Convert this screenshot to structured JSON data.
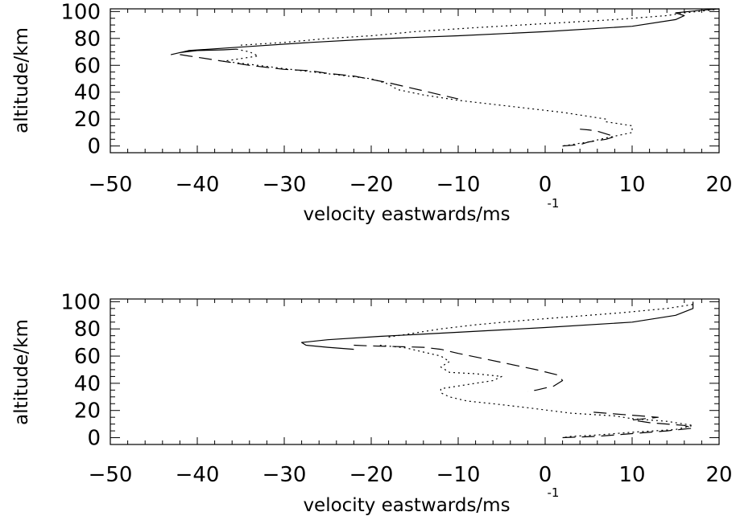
{
  "chart_data": [
    {
      "type": "line",
      "xlabel": "velocity eastwards/ms",
      "xlabel_sup": "-1",
      "ylabel": "altitude/km",
      "xlim": [
        -50,
        20
      ],
      "ylim": [
        -5,
        102
      ],
      "xticks": [
        -50,
        -40,
        -30,
        -20,
        -10,
        0,
        10,
        20
      ],
      "xtick_labels": [
        "−50",
        "−40",
        "−30",
        "−20",
        "−10",
        "0",
        "10",
        "20"
      ],
      "yticks": [
        0,
        20,
        40,
        60,
        80,
        100
      ],
      "ytick_labels": [
        "0",
        "20",
        "40",
        "60",
        "80",
        "100"
      ],
      "grid": false,
      "series": [
        {
          "style": "solid",
          "x": [
            -35.5,
            -37,
            -40,
            -42,
            -43,
            -41,
            -34,
            -27,
            -20,
            -10,
            0,
            10,
            15,
            16,
            15,
            18,
            20
          ],
          "y": [
            72,
            71.5,
            71,
            69.5,
            68,
            71,
            74,
            77,
            79.5,
            82,
            85,
            89,
            94,
            97,
            99,
            101,
            102
          ]
        },
        {
          "style": "dashed",
          "x": [
            -42,
            -41,
            -40,
            -38,
            -36,
            -34,
            -30,
            -27,
            -25,
            -22,
            -18,
            -16,
            -14,
            -12,
            -10
          ],
          "y": [
            68,
            67,
            66,
            64,
            62,
            60,
            57,
            56,
            54,
            52,
            47,
            44,
            41,
            38,
            35
          ]
        },
        {
          "style": "dashed",
          "x": [
            2,
            4,
            5,
            7,
            8,
            7,
            6,
            5,
            4
          ],
          "y": [
            0,
            1,
            3,
            5,
            7,
            9,
            11,
            12,
            12.5
          ]
        },
        {
          "style": "dotted",
          "x": [
            -35,
            -30,
            -25,
            -20,
            -15,
            -8,
            0,
            8,
            14,
            16,
            19,
            20
          ],
          "y": [
            75,
            77,
            80,
            82,
            85,
            88,
            91,
            94,
            97,
            99,
            101,
            102
          ]
        },
        {
          "style": "dotted",
          "x": [
            -35.5,
            -34,
            -33,
            -35,
            -37,
            -33,
            -28,
            -24,
            -20,
            -18,
            -17,
            -14,
            -10,
            -6,
            -2,
            2,
            5,
            7
          ],
          "y": [
            72,
            70,
            67,
            65,
            63,
            60,
            56,
            53,
            50,
            46,
            42,
            38,
            34,
            31,
            28,
            25,
            22,
            20
          ]
        },
        {
          "style": "dotted",
          "x": [
            7,
            10,
            10,
            7,
            5,
            3,
            2
          ],
          "y": [
            18,
            15,
            10,
            6,
            3,
            1,
            0
          ]
        }
      ]
    },
    {
      "type": "line",
      "xlabel": "velocity eastwards/ms",
      "xlabel_sup": "-1",
      "ylabel": "altitude/km",
      "xlim": [
        -50,
        20
      ],
      "ylim": [
        -5,
        102
      ],
      "xticks": [
        -50,
        -40,
        -30,
        -20,
        -10,
        0,
        10,
        20
      ],
      "xtick_labels": [
        "−50",
        "−40",
        "−30",
        "−20",
        "−10",
        "0",
        "10",
        "20"
      ],
      "yticks": [
        0,
        20,
        40,
        60,
        80,
        100
      ],
      "ytick_labels": [
        "0",
        "20",
        "40",
        "60",
        "80",
        "100"
      ],
      "grid": false,
      "series": [
        {
          "style": "solid",
          "x": [
            -22,
            -25,
            -27.5,
            -28,
            -25,
            -19,
            -10,
            0,
            10,
            15,
            17,
            17
          ],
          "y": [
            65,
            66.5,
            68,
            70,
            72,
            74.5,
            77.5,
            81,
            85,
            90,
            95,
            100
          ]
        },
        {
          "style": "dashed",
          "x": [
            -22,
            -20,
            -17,
            -14,
            -12,
            -10,
            -7,
            -4,
            -1,
            1.5,
            2,
            1,
            -1,
            -2
          ],
          "y": [
            68,
            67.5,
            67,
            66.5,
            65,
            62,
            58,
            54,
            50,
            46,
            42,
            38,
            35,
            34
          ]
        },
        {
          "style": "dashed",
          "x": [
            2,
            6,
            10,
            14,
            17,
            16,
            12,
            10,
            13,
            9,
            5
          ],
          "y": [
            0,
            1,
            3,
            5,
            7,
            9,
            11,
            13,
            15,
            17,
            19
          ]
        },
        {
          "style": "dotted",
          "x": [
            -18,
            -15,
            -12,
            -8,
            -3,
            3,
            9,
            14,
            17,
            17
          ],
          "y": [
            74,
            77,
            80,
            83,
            86,
            89,
            92,
            95,
            98,
            100
          ]
        },
        {
          "style": "dotted",
          "x": [
            -19,
            -16,
            -14,
            -12,
            -11,
            -12,
            -11,
            -8,
            -5,
            -6,
            -9,
            -11,
            -12,
            -12,
            -11,
            -9,
            -6,
            -2,
            3,
            8,
            10
          ],
          "y": [
            68,
            66,
            63,
            60,
            56,
            52,
            48,
            47,
            45,
            42,
            39,
            37,
            36,
            33,
            30,
            27,
            25,
            22,
            18,
            16,
            14
          ]
        },
        {
          "style": "dotted",
          "x": [
            10,
            14,
            17,
            15,
            10,
            6,
            3,
            2
          ],
          "y": [
            14,
            12,
            9,
            6,
            4,
            2,
            1,
            0
          ]
        }
      ]
    }
  ]
}
